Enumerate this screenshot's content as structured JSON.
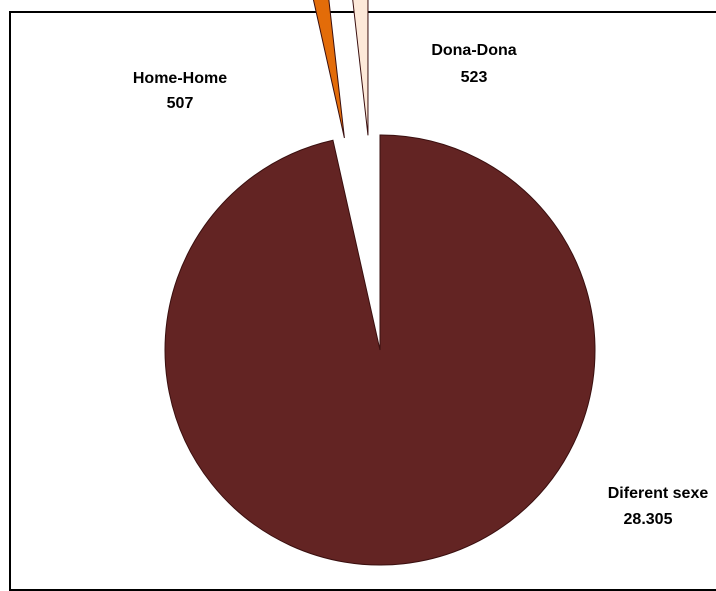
{
  "chart_data": {
    "type": "pie",
    "title": "",
    "slices": [
      {
        "label": "Diferent sexe",
        "value_text": "28.305",
        "value": 28305,
        "color": "#632423"
      },
      {
        "label": "Home-Home",
        "value_text": "507",
        "value": 507,
        "color": "#e36c09"
      },
      {
        "label": "Dona-Dona",
        "value_text": "523",
        "value": 523,
        "color": "#fde9d9"
      }
    ],
    "exploded": [
      "Home-Home",
      "Dona-Dona"
    ],
    "slice_border_color": "#3a0f0f",
    "legend": "none"
  }
}
